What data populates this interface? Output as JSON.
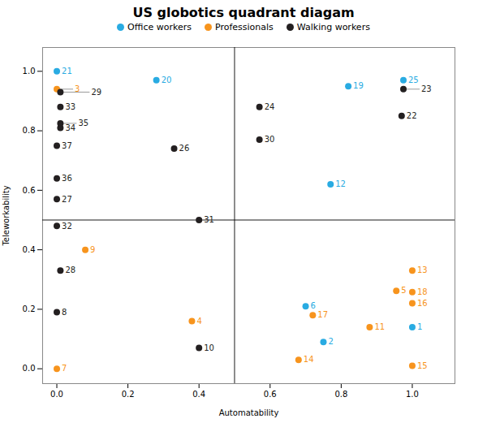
{
  "chart_data": {
    "type": "scatter",
    "title": "US globotics quadrant diagam",
    "xlabel": "Automatability",
    "ylabel": "Teleworkability",
    "series": [
      {
        "name": "Office workers",
        "color": "#29ABE2",
        "labels": [
          1,
          2,
          6,
          12,
          19,
          20,
          21,
          25
        ],
        "x": [
          1.0,
          0.75,
          0.7,
          0.77,
          0.82,
          0.28,
          0.0,
          0.975
        ],
        "y": [
          0.14,
          0.09,
          0.21,
          0.62,
          0.95,
          0.97,
          1.0,
          0.97
        ]
      },
      {
        "name": "Professionals",
        "color": "#F7941D",
        "labels": [
          3,
          4,
          5,
          7,
          9,
          11,
          13,
          14,
          15,
          16,
          17,
          18
        ],
        "x": [
          0.0,
          0.38,
          0.955,
          0.0,
          0.08,
          0.88,
          1.0,
          0.68,
          1.0,
          1.0,
          0.72,
          1.0
        ],
        "y": [
          0.94,
          0.16,
          0.262,
          0.0,
          0.4,
          0.14,
          0.33,
          0.03,
          0.01,
          0.22,
          0.18,
          0.258
        ]
      },
      {
        "name": "Walking workers",
        "color": "#231F20",
        "labels": [
          8,
          10,
          22,
          23,
          24,
          26,
          27,
          28,
          29,
          30,
          31,
          32,
          33,
          34,
          35,
          36,
          37
        ],
        "x": [
          0.0,
          0.4,
          0.97,
          0.975,
          0.57,
          0.33,
          0.0,
          0.01,
          0.01,
          0.57,
          0.4,
          0.0,
          0.01,
          0.01,
          0.01,
          0.0,
          0.0
        ],
        "y": [
          0.19,
          0.07,
          0.85,
          0.94,
          0.88,
          0.74,
          0.57,
          0.33,
          0.93,
          0.77,
          0.5,
          0.48,
          0.88,
          0.81,
          0.825,
          0.64,
          0.75
        ]
      }
    ],
    "hline": 0.5,
    "vline": 0.5,
    "xlim": [
      -0.04,
      1.12
    ],
    "ylim": [
      -0.05,
      1.08
    ],
    "xticks": [
      {
        "value": 0,
        "label": "0.0"
      },
      0.2,
      0.4,
      0.6,
      0.8,
      {
        "value": 1,
        "label": "1.0"
      }
    ],
    "yticks": [
      {
        "value": 0,
        "label": "0.0"
      },
      0.2,
      0.4,
      0.6,
      0.8,
      {
        "value": 1,
        "label": "1.0"
      }
    ],
    "grid": false,
    "legend": "top",
    "data_labels": true
  }
}
